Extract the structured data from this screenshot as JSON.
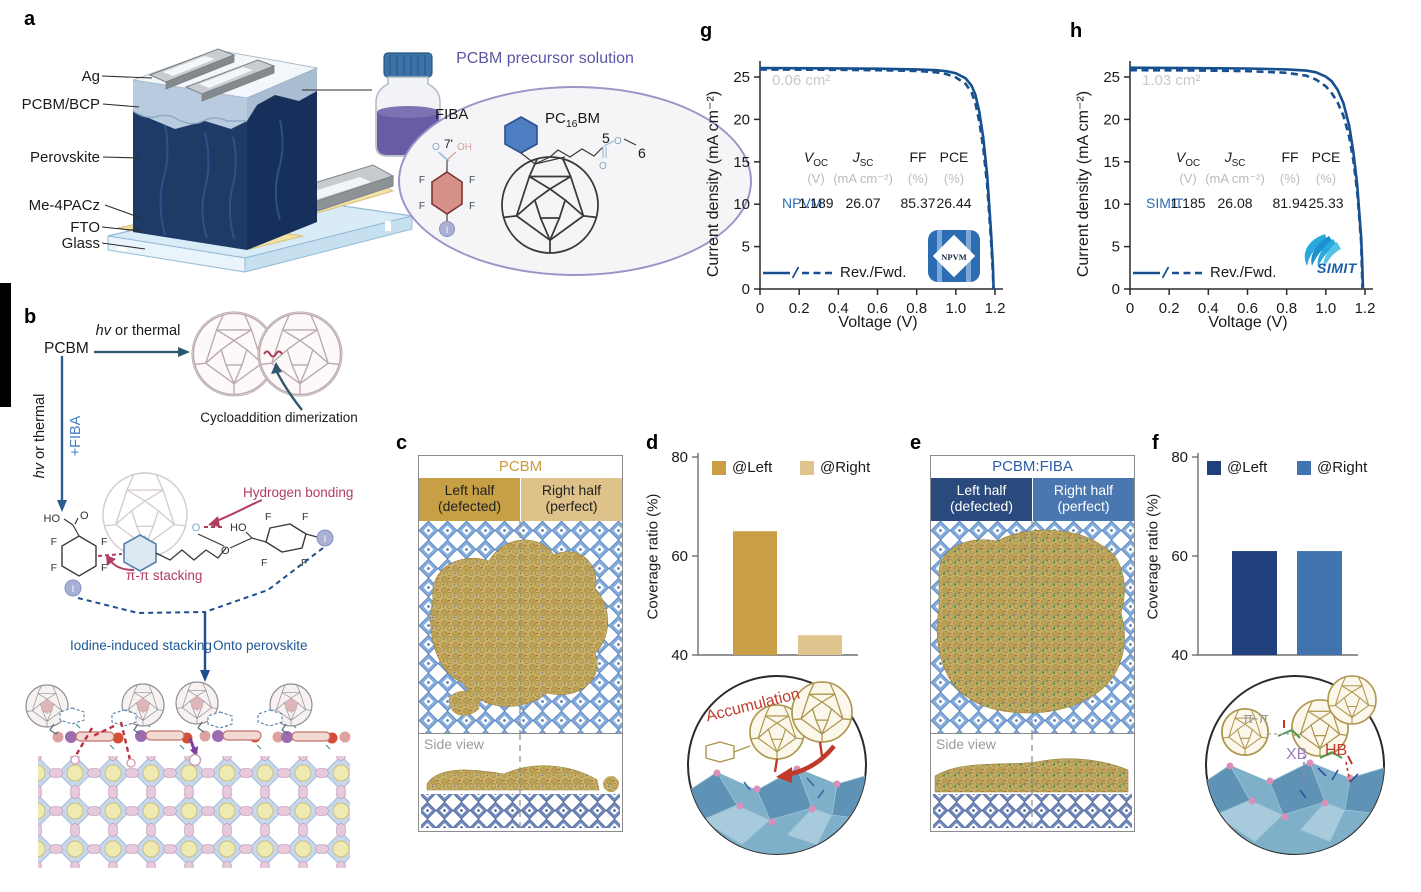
{
  "figure": {
    "panel_labels": {
      "a": "a",
      "b": "b",
      "c": "c",
      "d": "d",
      "e": "e",
      "f": "f",
      "g": "g",
      "h": "h"
    }
  },
  "atoms": {
    "F": "F",
    "I": "I",
    "O": "O",
    "HO": "HO",
    "OH": "OH"
  },
  "panel_a": {
    "layer_labels": [
      "Ag",
      "PCBM/BCP",
      "Perovskite",
      "Me-4PACz",
      "FTO",
      "Glass"
    ],
    "solution_title": "PCBM precursor solution",
    "fiba_label": "FIBA",
    "pcbm_molecule": {
      "pc": "PC",
      "sub": "16",
      "bm": "BM"
    },
    "carbon_7": "7'",
    "carbon_5": "5",
    "carbon_6": "6"
  },
  "panel_b": {
    "pcbm": "PCBM",
    "hv": "hv",
    "or_thermal": " or thermal",
    "plus_fiba": "+FIBA",
    "cycloaddition": "Cycloaddition dimerization",
    "hydrogen_bonding": "Hydrogen bonding",
    "pi_stacking": "π-π stacking",
    "iodine_stacking": "Iodine-induced stacking",
    "onto_perovskite": "Onto perovskite"
  },
  "panel_c": {
    "title": "PCBM",
    "left_line1": "Left half",
    "left_line2": "(defected)",
    "right_line1": "Right half",
    "right_line2": "(perfect)",
    "side_view": "Side view"
  },
  "panel_e": {
    "title": "PCBM:FIBA",
    "left_line1": "Left half",
    "left_line2": "(defected)",
    "right_line1": "Right half",
    "right_line2": "(perfect)",
    "side_view": "Side view"
  },
  "panel_d_inset": {
    "label": "Accumulation"
  },
  "panel_f_inset": {
    "pi": "π-π",
    "xb": "XB",
    "hb": "HB"
  },
  "logos": {
    "npvm": "NPVM",
    "simit": "SIMIT"
  },
  "chart_data": [
    {
      "id": "d",
      "type": "bar",
      "categories": [
        "@Left",
        "@Right"
      ],
      "values": [
        65,
        44
      ],
      "legend": [
        "@Left",
        "@Right"
      ],
      "legend_position": "top",
      "colors": [
        "#CA9E45",
        "#E0C48D"
      ],
      "ylabel": "Coverage ratio (%)",
      "ylim": [
        40,
        80
      ],
      "yticks": [
        40,
        60,
        80
      ],
      "ytick_labels": [
        "40",
        "60",
        "80"
      ]
    },
    {
      "id": "f",
      "type": "bar",
      "categories": [
        "@Left",
        "@Right"
      ],
      "values": [
        61,
        61
      ],
      "legend": [
        "@Left",
        "@Right"
      ],
      "legend_position": "top",
      "colors": [
        "#20417C",
        "#4173AE"
      ],
      "ylabel": "Coverage ratio (%)",
      "ylim": [
        40,
        80
      ],
      "yticks": [
        40,
        60,
        80
      ],
      "ytick_labels": [
        "40",
        "60",
        "80"
      ]
    },
    {
      "id": "g",
      "type": "line",
      "area_label": "0.06 cm²",
      "xlabel": "Voltage (V)",
      "ylabel": "Current density (mA cm⁻²)",
      "xlim": [
        0,
        1.2
      ],
      "ylim": [
        0,
        27
      ],
      "xticks": [
        0,
        0.2,
        0.4,
        0.6,
        0.8,
        1,
        1.2
      ],
      "xtick_labels": [
        "0",
        "0.2",
        "0.4",
        "0.6",
        "0.8",
        "1.0",
        "1.2"
      ],
      "yticks": [
        0,
        5,
        10,
        15,
        20,
        25
      ],
      "ytick_labels": [
        "0",
        "5",
        "10",
        "15",
        "20",
        "25"
      ],
      "line_color": "#17508F",
      "legend_label": "Rev./Fwd.",
      "series": [
        {
          "name": "Rev.",
          "style": "solid",
          "points": [
            [
              0,
              26.05
            ],
            [
              0.3,
              26.03
            ],
            [
              0.6,
              25.98
            ],
            [
              0.8,
              25.9
            ],
            [
              0.9,
              25.8
            ],
            [
              0.95,
              25.7
            ],
            [
              1,
              25.45
            ],
            [
              1.05,
              24.85
            ],
            [
              1.08,
              24
            ],
            [
              1.1,
              22.9
            ],
            [
              1.12,
              20.9
            ],
            [
              1.14,
              17.8
            ],
            [
              1.16,
              13.4
            ],
            [
              1.18,
              6.6
            ],
            [
              1.19,
              2.5
            ],
            [
              1.193,
              0
            ]
          ]
        },
        {
          "name": "Fwd.",
          "style": "dashed",
          "points": [
            [
              0,
              25.88
            ],
            [
              0.3,
              25.86
            ],
            [
              0.6,
              25.8
            ],
            [
              0.8,
              25.72
            ],
            [
              0.9,
              25.55
            ],
            [
              0.95,
              25.35
            ],
            [
              1,
              24.95
            ],
            [
              1.05,
              24.2
            ],
            [
              1.08,
              23.2
            ],
            [
              1.1,
              21.9
            ],
            [
              1.12,
              19.7
            ],
            [
              1.14,
              16.6
            ],
            [
              1.16,
              12.2
            ],
            [
              1.18,
              5.6
            ],
            [
              1.19,
              1.6
            ],
            [
              1.192,
              0
            ]
          ]
        }
      ],
      "table": {
        "row_label": "NPVM",
        "headers": [
          {
            "sym": "V",
            "sub": "OC"
          },
          {
            "sym": "J",
            "sub": "SC"
          },
          {
            "sym": "FF",
            "sub": ""
          },
          {
            "sym": "PCE",
            "sub": ""
          }
        ],
        "units": [
          "(V)",
          "(mA cm⁻²)",
          "(%)",
          "(%)"
        ],
        "values": [
          "1.189",
          "26.07",
          "85.37",
          "26.44"
        ]
      }
    },
    {
      "id": "h",
      "type": "line",
      "area_label": "1.03 cm²",
      "xlabel": "Voltage (V)",
      "ylabel": "Current density (mA cm⁻²)",
      "xlim": [
        0,
        1.2
      ],
      "ylim": [
        0,
        27
      ],
      "xticks": [
        0,
        0.2,
        0.4,
        0.6,
        0.8,
        1,
        1.2
      ],
      "xtick_labels": [
        "0",
        "0.2",
        "0.4",
        "0.6",
        "0.8",
        "1.0",
        "1.2"
      ],
      "yticks": [
        0,
        5,
        10,
        15,
        20,
        25
      ],
      "ytick_labels": [
        "0",
        "5",
        "10",
        "15",
        "20",
        "25"
      ],
      "line_color": "#17508F",
      "legend_label": "Rev./Fwd.",
      "series": [
        {
          "name": "Rev.",
          "style": "solid",
          "points": [
            [
              0,
              26.1
            ],
            [
              0.3,
              26.05
            ],
            [
              0.6,
              26
            ],
            [
              0.8,
              25.9
            ],
            [
              0.9,
              25.75
            ],
            [
              0.95,
              25.55
            ],
            [
              1,
              25.05
            ],
            [
              1.03,
              24.5
            ],
            [
              1.06,
              23.5
            ],
            [
              1.09,
              21.9
            ],
            [
              1.12,
              19.2
            ],
            [
              1.14,
              16.2
            ],
            [
              1.16,
              12.3
            ],
            [
              1.18,
              6.2
            ],
            [
              1.185,
              3.5
            ],
            [
              1.19,
              0
            ]
          ]
        },
        {
          "name": "Fwd.",
          "style": "dashed",
          "points": [
            [
              0,
              25.8
            ],
            [
              0.3,
              25.78
            ],
            [
              0.6,
              25.7
            ],
            [
              0.8,
              25.5
            ],
            [
              0.9,
              25.15
            ],
            [
              0.95,
              24.7
            ],
            [
              1,
              23.9
            ],
            [
              1.03,
              23.1
            ],
            [
              1.06,
              22
            ],
            [
              1.09,
              20.4
            ],
            [
              1.12,
              17.9
            ],
            [
              1.14,
              15.2
            ],
            [
              1.16,
              11.5
            ],
            [
              1.18,
              5.6
            ],
            [
              1.187,
              0
            ]
          ]
        }
      ],
      "table": {
        "row_label": "SIMIT",
        "headers": [
          {
            "sym": "V",
            "sub": "OC"
          },
          {
            "sym": "J",
            "sub": "SC"
          },
          {
            "sym": "FF",
            "sub": ""
          },
          {
            "sym": "PCE",
            "sub": ""
          }
        ],
        "units": [
          "(V)",
          "(mA cm⁻²)",
          "(%)",
          "(%)"
        ],
        "values": [
          "1.185",
          "26.08",
          "81.94",
          "25.33"
        ]
      }
    }
  ]
}
